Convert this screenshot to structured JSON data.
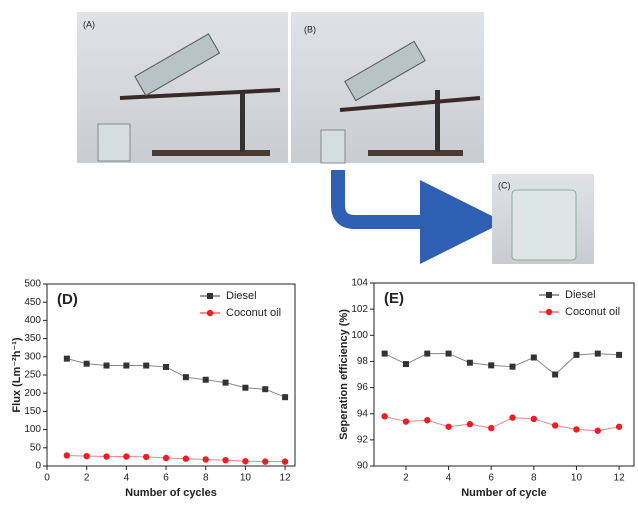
{
  "photos": [
    "(A)",
    "(B)",
    "(C)"
  ],
  "chart_data": [
    {
      "type": "line",
      "title": "(D)",
      "x_label": "Number of cycles",
      "y_label": "Flux (Lm⁻²h⁻¹)",
      "x": [
        1,
        2,
        3,
        4,
        5,
        6,
        7,
        8,
        9,
        10,
        11,
        12
      ],
      "xlim": [
        0,
        12.5
      ],
      "xticks": [
        0,
        2,
        4,
        6,
        8,
        10,
        12
      ],
      "ylim": [
        0,
        500
      ],
      "yticks": [
        0,
        50,
        100,
        150,
        200,
        250,
        300,
        350,
        400,
        450,
        500
      ],
      "legend": "upper right",
      "series": [
        {
          "name": "Diesel",
          "color": "#333333",
          "marker": "square",
          "values": [
            295,
            281,
            276,
            276,
            276,
            272,
            244,
            237,
            229,
            215,
            211,
            189
          ]
        },
        {
          "name": "Coconut oil",
          "color": "#ee1c25",
          "marker": "circle",
          "values": [
            29,
            27,
            26,
            26,
            25,
            22,
            20,
            18,
            16,
            13,
            12,
            12
          ]
        }
      ]
    },
    {
      "type": "line",
      "title": "(E)",
      "x_label": "Number of cycle",
      "y_label": "Seperation efficiency (%)",
      "x": [
        1,
        2,
        3,
        4,
        5,
        6,
        7,
        8,
        9,
        10,
        11,
        12
      ],
      "xlim": [
        0.5,
        12.7
      ],
      "xticks": [
        2,
        4,
        6,
        8,
        10,
        12
      ],
      "ylim": [
        90,
        104
      ],
      "yticks": [
        90,
        92,
        94,
        96,
        98,
        100,
        102,
        104
      ],
      "legend": "upper right",
      "series": [
        {
          "name": "Diesel",
          "color": "#333333",
          "marker": "square",
          "values": [
            98.6,
            97.8,
            98.6,
            98.6,
            97.9,
            97.7,
            97.6,
            98.3,
            97.0,
            98.5,
            98.6,
            98.5
          ]
        },
        {
          "name": "Coconut oil",
          "color": "#ee1c25",
          "marker": "circle",
          "values": [
            93.8,
            93.4,
            93.5,
            93.0,
            93.2,
            92.9,
            93.7,
            93.6,
            93.1,
            92.8,
            92.7,
            93.0
          ]
        }
      ]
    }
  ]
}
